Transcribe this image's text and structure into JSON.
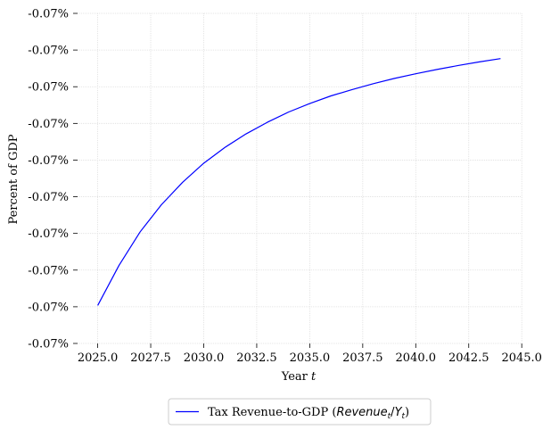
{
  "chart_data": {
    "type": "line",
    "title": "",
    "xlabel": "Year",
    "xlabel_var": "t",
    "ylabel": "Percent of GDP",
    "xlim": [
      2024.05,
      2044.95
    ],
    "x_ticks": [
      2025.0,
      2027.5,
      2030.0,
      2032.5,
      2035.0,
      2037.5,
      2040.0,
      2042.5,
      2045.0
    ],
    "x_tick_labels": [
      "2025.0",
      "2027.5",
      "2030.0",
      "2032.5",
      "2035.0",
      "2037.5",
      "2040.0",
      "2042.5",
      "2045.0"
    ],
    "y_tick_labels": [
      "-0.07%",
      "-0.07%",
      "-0.07%",
      "-0.07%",
      "-0.07%",
      "-0.07%",
      "-0.07%",
      "-0.07%",
      "-0.07%",
      "-0.07%"
    ],
    "y_tick_count": 10,
    "ylim": [
      0,
      1
    ],
    "grid": true,
    "legend_position": "bottom-center",
    "series": [
      {
        "name": "Tax Revenue-to-GDP (Revenue_t/Y_t)",
        "color": "#0000ff",
        "x": [
          2025,
          2026,
          2027,
          2028,
          2029,
          2030,
          2031,
          2032,
          2033,
          2034,
          2035,
          2036,
          2037,
          2038,
          2039,
          2040,
          2041,
          2042,
          2043,
          2044
        ],
        "y": [
          0.115,
          0.236,
          0.338,
          0.42,
          0.488,
          0.546,
          0.594,
          0.635,
          0.67,
          0.701,
          0.727,
          0.75,
          0.769,
          0.787,
          0.803,
          0.817,
          0.83,
          0.842,
          0.853,
          0.863
        ]
      }
    ],
    "legend": {
      "prefix": "Tax Revenue-to-GDP (",
      "math_num": "Revenue",
      "math_num_sub": "t",
      "math_den": "Y",
      "math_den_sub": "t",
      "suffix": ")"
    }
  }
}
